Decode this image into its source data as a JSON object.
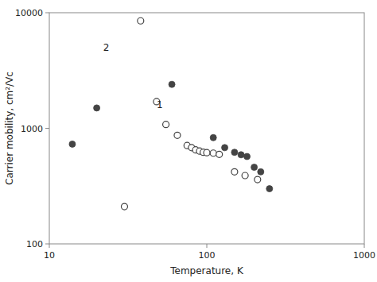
{
  "chart_data": {
    "type": "scatter",
    "log": true,
    "xlabel": "Temperature, K",
    "ylabel": "Carrier mobility, cm²/Vc",
    "xlim": [
      10,
      1000
    ],
    "ylim": [
      100,
      10000
    ],
    "xticks": [
      10,
      100,
      1000
    ],
    "yticks": [
      100,
      1000,
      10000
    ],
    "grid": false,
    "series": [
      {
        "marker": "circle",
        "color": "#444444",
        "x": [
          14,
          20,
          60,
          110,
          130,
          150,
          165,
          180,
          200,
          220,
          250
        ],
        "values": [
          730,
          1500,
          2400,
          830,
          680,
          620,
          590,
          570,
          460,
          420,
          300
        ]
      },
      {
        "marker": "circle-open",
        "color": "#444444",
        "x": [
          30,
          38,
          48,
          55,
          65,
          75,
          80,
          85,
          90,
          95,
          100,
          110,
          120,
          150,
          175,
          210
        ],
        "values": [
          210,
          8500,
          1700,
          1080,
          870,
          710,
          680,
          650,
          635,
          620,
          615,
          610,
          595,
          420,
          390,
          360
        ]
      }
    ],
    "annotations": [
      {
        "text": "1",
        "x": 48,
        "y": 1600
      },
      {
        "text": "2",
        "x": 22,
        "y": 5000
      }
    ]
  }
}
